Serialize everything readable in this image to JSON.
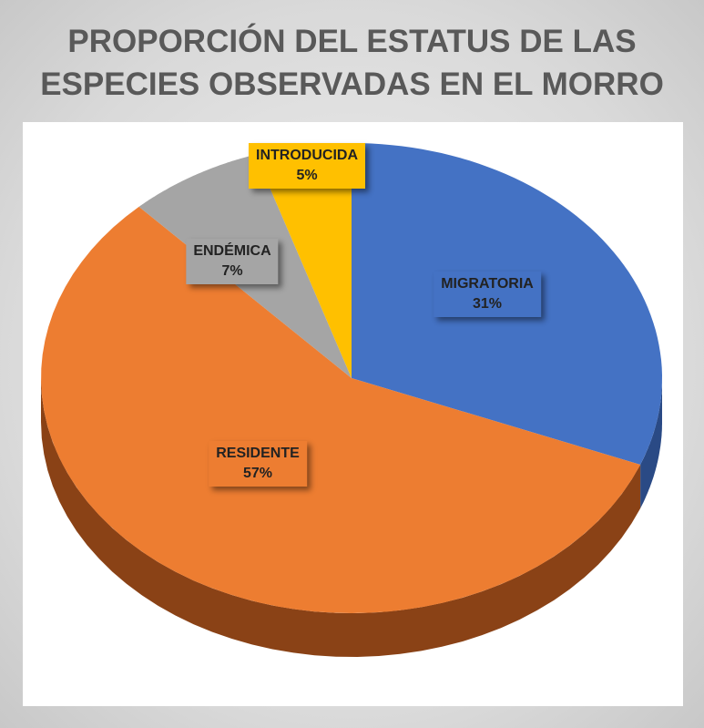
{
  "chart_data": {
    "type": "pie",
    "title": "PROPORCIÓN DEL ESTATUS DE LAS ESPECIES OBSERVADAS EN EL MORRO",
    "title_lines": [
      "PROPORCIÓN DEL ESTATUS DE LAS",
      "ESPECIES OBSERVADAS EN EL MORRO"
    ],
    "style": "3d",
    "slices": [
      {
        "label": "MIGRATORIA",
        "value": 31,
        "value_label": "31%",
        "color": "#4472C4",
        "side": "#2a4a85"
      },
      {
        "label": "RESIDENTE",
        "value": 57,
        "value_label": "57%",
        "color": "#ED7D31",
        "side": "#8a4216"
      },
      {
        "label": "ENDÉMICA",
        "value": 7,
        "value_label": "7%",
        "color": "#A5A5A5",
        "side": "#6b6b6b"
      },
      {
        "label": "INTRODUCIDA",
        "value": 5,
        "value_label": "5%",
        "color": "#FFC000",
        "side": "#a67c00"
      }
    ]
  }
}
